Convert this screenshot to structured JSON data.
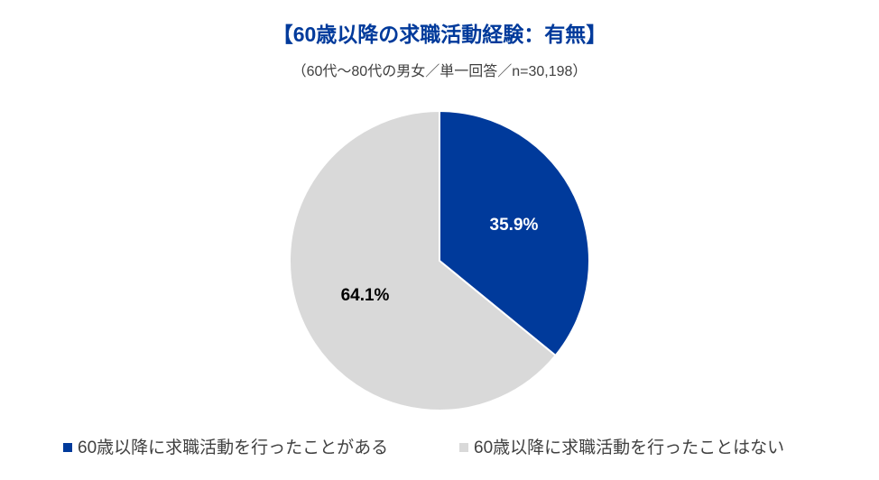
{
  "chart_data": {
    "type": "pie",
    "title": "【60歳以降の求職活動経験：有無】",
    "subtitle": "（60代〜80代の男女／単一回答／n=30,198）",
    "categories": [
      "60歳以降に求職活動を行ったことがある",
      "60歳以降に求職活動を行ったことはない"
    ],
    "values": [
      35.9,
      64.1
    ],
    "value_labels": [
      "35.9%",
      "64.1%"
    ],
    "colors": [
      "#003A9B",
      "#D9D9D9"
    ],
    "legend": "bottom"
  }
}
